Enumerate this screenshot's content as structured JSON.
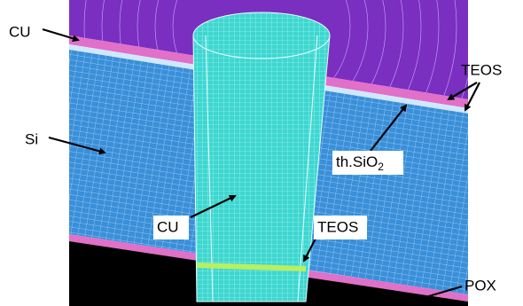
{
  "labels": [
    {
      "text": "CU"
    },
    {
      "text": "TEOS"
    },
    {
      "text": "Si"
    },
    {
      "text": "th.SiO",
      "subscript": "2"
    },
    {
      "text": "CU"
    },
    {
      "text": "TEOS"
    },
    {
      "text": "POX"
    }
  ]
}
